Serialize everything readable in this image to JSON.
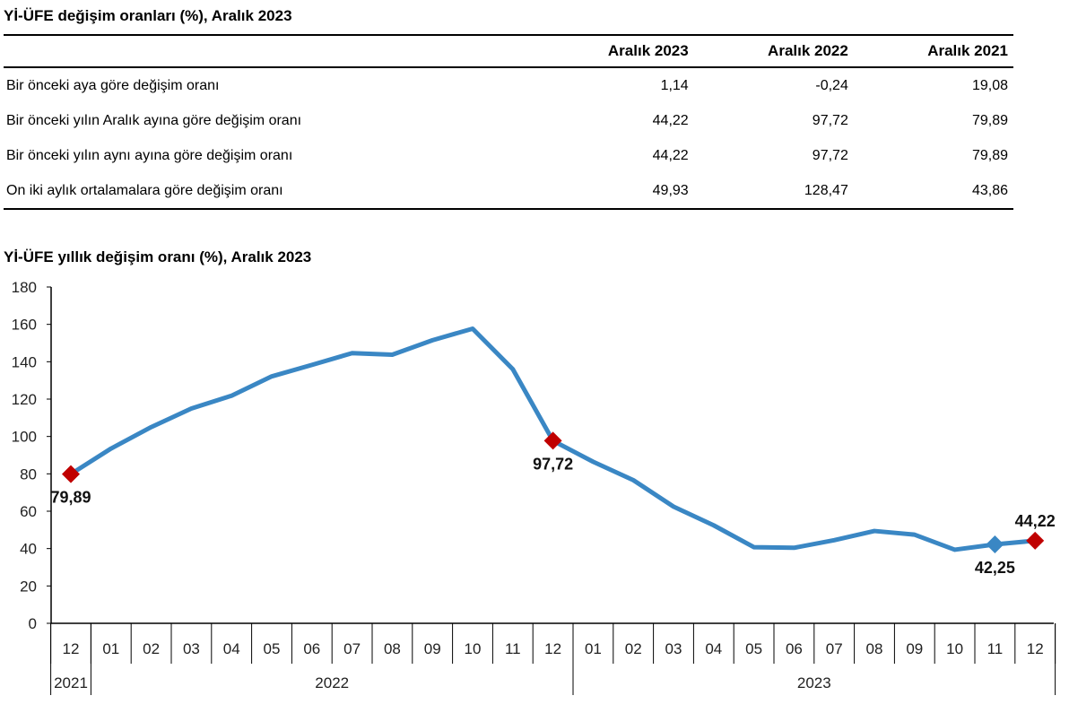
{
  "table": {
    "title": "Yİ-ÜFE değişim oranları (%), Aralık 2023",
    "headers": [
      "",
      "Aralık 2023",
      "Aralık 2022",
      "Aralık 2021"
    ],
    "rows": [
      [
        "Bir önceki aya göre değişim oranı",
        "1,14",
        "-0,24",
        "19,08"
      ],
      [
        "Bir önceki yılın Aralık ayına göre değişim oranı",
        "44,22",
        "97,72",
        "79,89"
      ],
      [
        "Bir önceki yılın aynı ayına göre değişim oranı",
        "44,22",
        "97,72",
        "79,89"
      ],
      [
        "On iki aylık ortalamalara göre değişim oranı",
        "49,93",
        "128,47",
        "43,86"
      ]
    ]
  },
  "chart_data": {
    "type": "line",
    "title": "Yİ-ÜFE yıllık değişim oranı (%), Aralık 2023",
    "categories": [
      "12",
      "01",
      "02",
      "03",
      "04",
      "05",
      "06",
      "07",
      "08",
      "09",
      "10",
      "11",
      "12",
      "01",
      "02",
      "03",
      "04",
      "05",
      "06",
      "07",
      "08",
      "09",
      "10",
      "11",
      "12"
    ],
    "year_groups": [
      {
        "label": "2021",
        "count": 1
      },
      {
        "label": "2022",
        "count": 12
      },
      {
        "label": "2023",
        "count": 12
      }
    ],
    "values": [
      79.89,
      93.53,
      105.01,
      114.97,
      121.82,
      132.16,
      138.31,
      144.61,
      143.75,
      151.5,
      157.69,
      136.02,
      97.72,
      86.46,
      76.61,
      62.45,
      52.44,
      40.76,
      40.42,
      44.5,
      49.41,
      47.44,
      39.39,
      42.25,
      44.22
    ],
    "ylim": [
      0,
      180
    ],
    "yticks": [
      0,
      20,
      40,
      60,
      80,
      100,
      120,
      140,
      160,
      180
    ],
    "annotations": [
      {
        "index": 0,
        "label": "79,89",
        "marker": "red-diamond",
        "pos": "below"
      },
      {
        "index": 12,
        "label": "97,72",
        "marker": "red-diamond",
        "pos": "below"
      },
      {
        "index": 23,
        "label": "42,25",
        "marker": "blue-diamond",
        "pos": "below"
      },
      {
        "index": 24,
        "label": "44,22",
        "marker": "red-diamond",
        "pos": "above"
      }
    ],
    "colors": {
      "line": "#3a87c4",
      "red_marker": "#c00000",
      "blue_marker": "#3a87c4"
    },
    "grid": false
  }
}
